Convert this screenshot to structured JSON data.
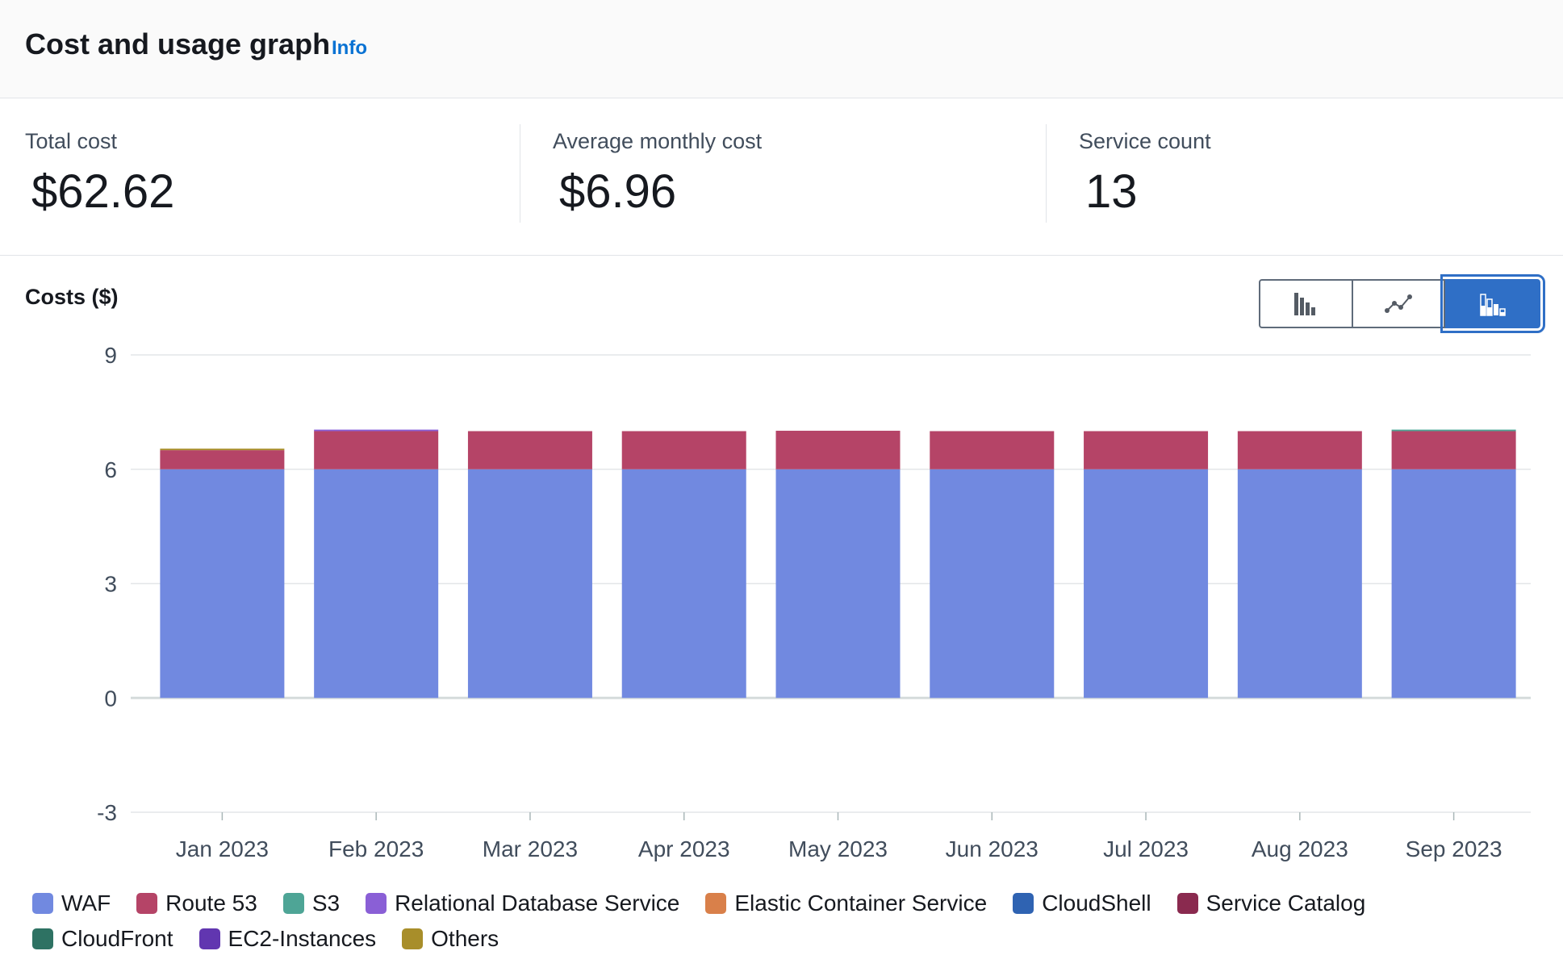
{
  "header": {
    "title": "Cost and usage graph",
    "info_link": "Info"
  },
  "metrics": [
    {
      "label": "Total cost",
      "value": "$62.62"
    },
    {
      "label": "Average monthly cost",
      "value": "$6.96"
    },
    {
      "label": "Service count",
      "value": "13"
    }
  ],
  "chart_controls": {
    "buttons": [
      {
        "name": "bar-chart-view",
        "icon": "bar-chart-icon",
        "selected": false
      },
      {
        "name": "line-chart-view",
        "icon": "line-chart-icon",
        "selected": false
      },
      {
        "name": "stacked-bar-chart-view",
        "icon": "stacked-bar-chart-icon",
        "selected": true
      }
    ]
  },
  "chart_data": {
    "type": "bar",
    "stacked": true,
    "title": "",
    "ylabel": "Costs ($)",
    "xlabel": "",
    "ylim": [
      -3,
      9
    ],
    "yticks": [
      "9",
      "6",
      "3",
      "0",
      "-3"
    ],
    "ytick_values": [
      9,
      6,
      3,
      0,
      -3
    ],
    "grid": true,
    "legend_position": "bottom",
    "categories": [
      "Jan 2023",
      "Feb 2023",
      "Mar 2023",
      "Apr 2023",
      "May 2023",
      "Jun 2023",
      "Jul 2023",
      "Aug 2023",
      "Sep 2023"
    ],
    "series": [
      {
        "name": "WAF",
        "color": "#7189e0",
        "values": [
          6,
          6,
          6,
          6,
          6,
          6,
          6,
          6,
          6
        ]
      },
      {
        "name": "Route 53",
        "color": "#b54467",
        "values": [
          0.5,
          1.0,
          1.0,
          1.0,
          1.01,
          1.0,
          1.0,
          1.0,
          1.0
        ]
      },
      {
        "name": "S3",
        "color": "#4ea596",
        "values": [
          0,
          0,
          0,
          0,
          0,
          0,
          0,
          0,
          0.04
        ]
      },
      {
        "name": "Relational Database Service",
        "color": "#8a5fd6",
        "values": [
          0,
          0.04,
          0,
          0,
          0,
          0,
          0,
          0,
          0
        ]
      },
      {
        "name": "Elastic Container Service",
        "color": "#d9804a",
        "values": [
          0,
          0,
          0,
          0,
          0,
          0,
          0,
          0,
          0
        ]
      },
      {
        "name": "CloudShell",
        "color": "#2f63b2",
        "values": [
          0,
          0,
          0,
          0,
          0,
          0,
          0,
          0,
          0
        ]
      },
      {
        "name": "Service Catalog",
        "color": "#8a2a4f",
        "values": [
          0,
          0,
          0,
          0,
          0,
          0,
          0,
          0,
          0
        ]
      },
      {
        "name": "CloudFront",
        "color": "#2e7263",
        "values": [
          0,
          0,
          0,
          0,
          0,
          0,
          0,
          0,
          0
        ]
      },
      {
        "name": "EC2-Instances",
        "color": "#6136b0",
        "values": [
          0,
          0,
          0,
          0,
          0,
          0,
          0,
          0,
          0
        ]
      },
      {
        "name": "Others",
        "color": "#a88e2a",
        "values": [
          0.04,
          0,
          0,
          0,
          0,
          0,
          0,
          0,
          0
        ]
      }
    ]
  }
}
